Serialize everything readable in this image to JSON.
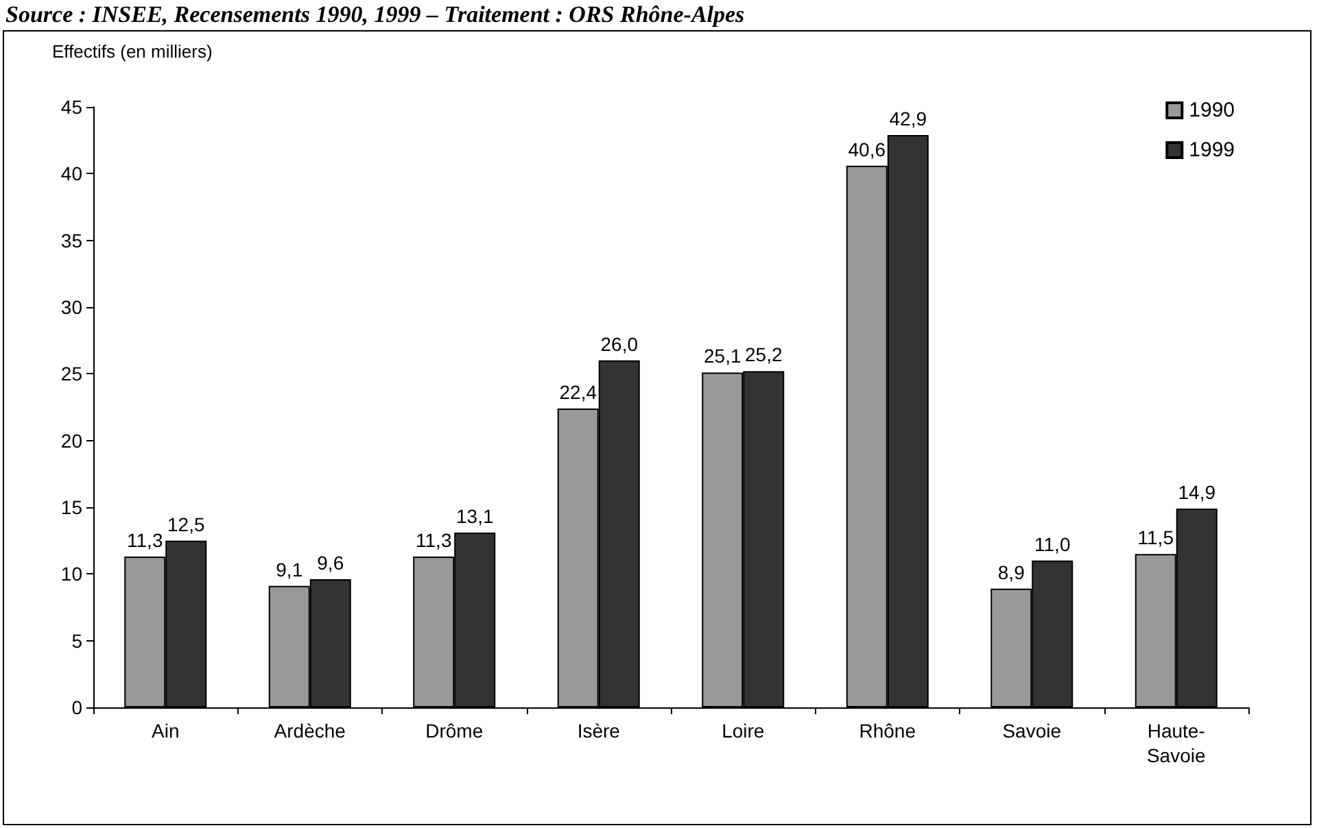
{
  "chart_data": {
    "type": "bar",
    "annotations": [
      "Source : INSEE, Recensements 1990, 1999 – Traitement : ORS Rhône-Alpes"
    ],
    "ylabel": "Effectifs (en milliers)",
    "categories": [
      "Ain",
      "Ardèche",
      "Drôme",
      "Isère",
      "Loire",
      "Rhône",
      "Savoie",
      "Haute-\nSavoie"
    ],
    "series": [
      {
        "name": "1990",
        "color": "#999999",
        "values": [
          11.3,
          9.1,
          11.3,
          22.4,
          25.1,
          40.6,
          8.9,
          11.5
        ],
        "value_labels": [
          "11,3",
          "9,1",
          "11,3",
          "22,4",
          "25,1",
          "40,6",
          "8,9",
          "11,5"
        ]
      },
      {
        "name": "1999",
        "color": "#333333",
        "values": [
          12.5,
          9.6,
          13.1,
          26.0,
          25.2,
          42.9,
          11.0,
          14.9
        ],
        "value_labels": [
          "12,5",
          "9,6",
          "13,1",
          "26,0",
          "25,2",
          "42,9",
          "11,0",
          "14,9"
        ]
      }
    ],
    "ylim": [
      0,
      45
    ],
    "yticks": [
      0,
      5,
      10,
      15,
      20,
      25,
      30,
      35,
      40,
      45
    ],
    "legend": "top right",
    "grid": false
  }
}
